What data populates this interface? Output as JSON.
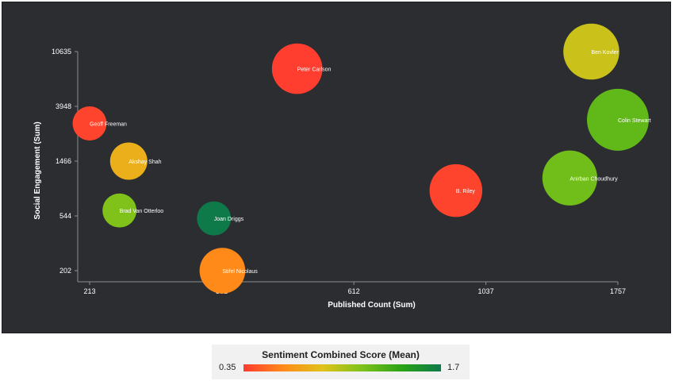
{
  "chart_data": {
    "type": "scatter",
    "xlabel": "Published Count (Sum)",
    "ylabel": "Social Engagement (Sum)",
    "x_scale": "log",
    "y_scale": "log",
    "xlim": [
      200,
      1757
    ],
    "ylim": [
      202,
      10635
    ],
    "x_ticks": [
      213,
      361,
      612,
      1037,
      1757
    ],
    "y_ticks": [
      202,
      544,
      1466,
      3948,
      10635
    ],
    "grid": false,
    "points": [
      {
        "label": "Geoff Freeman",
        "x": 213,
        "y": 2900,
        "sentiment": 0.38,
        "size": 10
      },
      {
        "label": "Akshay Shah",
        "x": 249,
        "y": 1466,
        "sentiment": 0.8,
        "size": 12
      },
      {
        "label": "Brad Van Otterloo",
        "x": 240,
        "y": 600,
        "sentiment": 1.15,
        "size": 10
      },
      {
        "label": "Joan Driggs",
        "x": 350,
        "y": 520,
        "sentiment": 1.7,
        "size": 10
      },
      {
        "label": "Stifel Nicolaus",
        "x": 362,
        "y": 202,
        "sentiment": 0.62,
        "size": 18
      },
      {
        "label": "Peter Carlson",
        "x": 488,
        "y": 7800,
        "sentiment": 0.36,
        "size": 22
      },
      {
        "label": "B. Riley",
        "x": 920,
        "y": 860,
        "sentiment": 0.38,
        "size": 24
      },
      {
        "label": "Ben Kovler",
        "x": 1580,
        "y": 10635,
        "sentiment": 0.95,
        "size": 27
      },
      {
        "label": "Colin Stewart",
        "x": 1757,
        "y": 3100,
        "sentiment": 1.25,
        "size": 33
      },
      {
        "label": "Anirban Choudhury",
        "x": 1450,
        "y": 1080,
        "sentiment": 1.2,
        "size": 26
      }
    ]
  },
  "legend": {
    "title": "Sentiment Combined Score (Mean)",
    "min_label": "0.35",
    "max_label": "1.7",
    "colors": [
      "#ff3b30",
      "#ff8a1a",
      "#e0c21a",
      "#7dc21a",
      "#2aa316",
      "#0e7a4a"
    ]
  }
}
